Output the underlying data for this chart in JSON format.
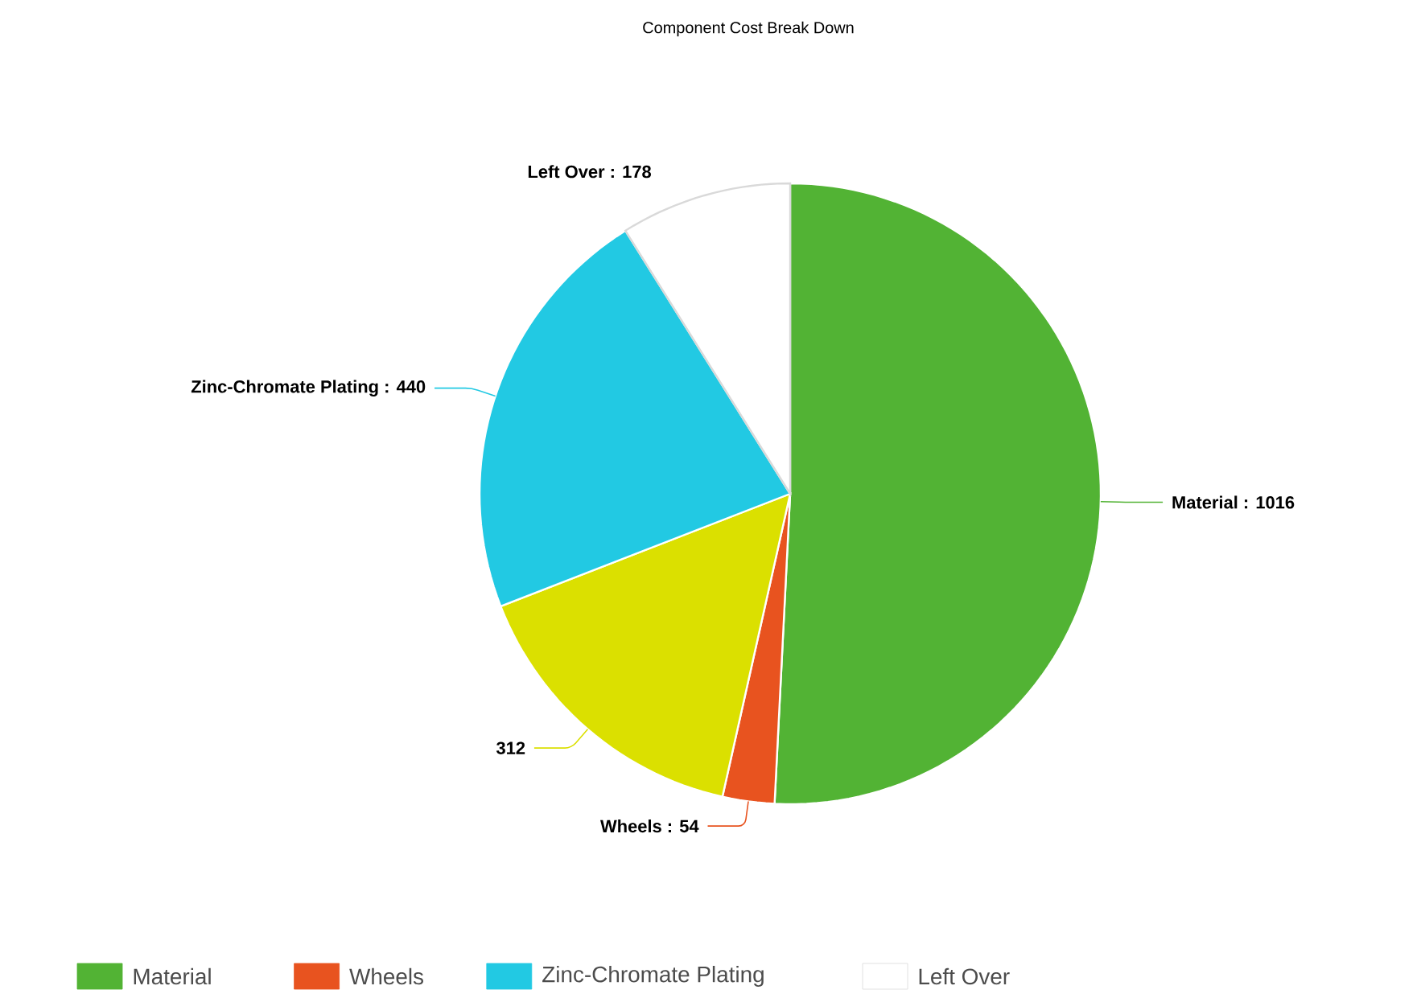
{
  "chart_data": {
    "type": "pie",
    "title": "Component Cost Break Down",
    "categories": [
      "Material",
      "Wheels",
      null,
      "Zinc-Chromate Plating",
      "Left Over"
    ],
    "values": [
      1016,
      54,
      312,
      440,
      178
    ],
    "colors": [
      "#52b334",
      "#e8531f",
      "#dbe000",
      "#22c9e3",
      "#ffffff"
    ],
    "value_labels": [
      "Material : 1016",
      "Wheels : 54",
      "312",
      "Zinc-Chromate Plating : 440",
      "Left Over : 178"
    ],
    "legend": "bottom"
  }
}
